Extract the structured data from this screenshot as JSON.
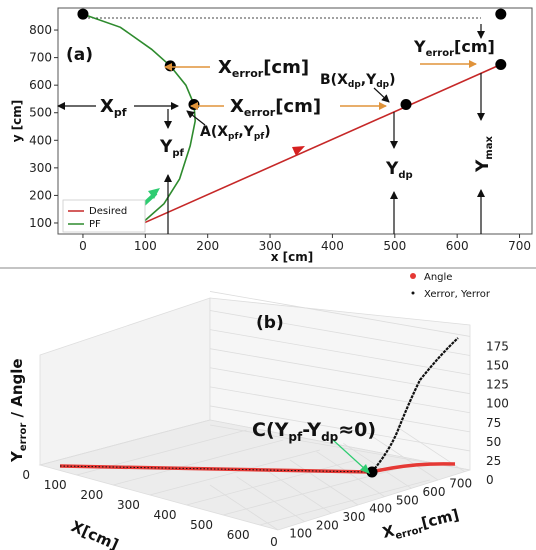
{
  "chart_data": [
    {
      "panel_label": "(a)",
      "type": "line",
      "xlabel": "x [cm]",
      "ylabel": "y [cm]",
      "xlim": [
        -40,
        720
      ],
      "ylim": [
        60,
        880
      ],
      "xticks": [
        0,
        100,
        200,
        300,
        400,
        500,
        600,
        700
      ],
      "yticks": [
        100,
        200,
        300,
        400,
        500,
        600,
        700,
        800
      ],
      "legend": {
        "position": "lower-left",
        "entries": [
          {
            "name": "Desired",
            "color": "#c62828"
          },
          {
            "name": "PF",
            "color": "#2e8b2e"
          }
        ]
      },
      "series": [
        {
          "name": "Desired",
          "color": "#c62828",
          "x": [
            88,
            670
          ],
          "y": [
            90,
            675
          ]
        },
        {
          "name": "PF",
          "color": "#2e8b2e",
          "x": [
            0,
            60,
            110,
            140,
            165,
            178,
            180,
            172,
            155,
            130,
            100,
            88
          ],
          "y": [
            858,
            810,
            730,
            670,
            600,
            530,
            470,
            380,
            260,
            170,
            110,
            90
          ]
        }
      ],
      "points": [
        [
          0,
          858
        ],
        [
          670,
          858
        ],
        [
          140,
          670
        ],
        [
          670,
          675
        ],
        [
          178,
          530
        ],
        [
          518,
          530
        ],
        [
          88,
          90
        ]
      ],
      "annotations": {
        "xerror_top": "X",
        "xerror_top_sub": "error",
        "xerror_top_unit": "[cm]",
        "yerror": "Y",
        "yerror_sub": "error",
        "yerror_unit": "[cm]",
        "xpf": "X",
        "xpf_sub": "pf",
        "xerror_mid": "X",
        "xerror_mid_sub": "error",
        "xerror_mid_unit": "[cm]",
        "a_prefix": "A(X",
        "a_sub1": "pf",
        "a_mid": ",Y",
        "a_sub2": "pf",
        "a_end": ")",
        "b_prefix": "B(X",
        "b_sub1": "dp",
        "b_mid": ",Y",
        "b_sub2": "dp",
        "b_end": ")",
        "ypf": "Y",
        "ypf_sub": "pf",
        "ydp": "Y",
        "ydp_sub": "dp",
        "ymax": "Y",
        "ymax_sub": "max"
      }
    },
    {
      "panel_label": "(b)",
      "type": "scatter",
      "xlabel": "X[cm]",
      "ylabel": "Y",
      "ylabel_sub": "error",
      "ylabel_rest": " / Angle",
      "zlabel": "X",
      "zlabel_sub": "error",
      "zlabel_unit": "[cm]",
      "xticks": [
        0,
        100,
        200,
        300,
        400,
        500,
        600
      ],
      "zticks": [
        0,
        100,
        200,
        300,
        400,
        500,
        600,
        700
      ],
      "yticks": [
        0,
        25,
        50,
        75,
        100,
        125,
        150,
        175
      ],
      "legend": {
        "position": "top-right",
        "entries": [
          {
            "name": "Angle",
            "color": "#e53935"
          },
          {
            "name": "Xerror, Yerror",
            "color": "#111111"
          }
        ]
      },
      "annotation": {
        "prefix": "C(Y",
        "sub1": "pf",
        "mid": "-Y",
        "sub2": "dp",
        "end": "≈0)"
      }
    }
  ]
}
